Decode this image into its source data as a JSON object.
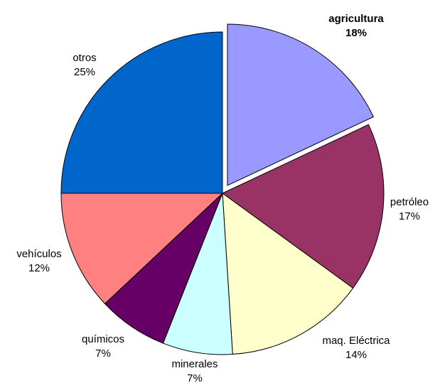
{
  "chart_data": {
    "type": "pie",
    "title": "",
    "exploded": "agricultura",
    "slices": [
      {
        "label": "agricultura",
        "value_label": "18%",
        "value": 18,
        "color": "#9999ff",
        "bold": true
      },
      {
        "label": "petróleo",
        "value_label": "17%",
        "value": 17,
        "color": "#993366",
        "bold": false
      },
      {
        "label": "maq. Eléctrica",
        "value_label": "14%",
        "value": 14,
        "color": "#ffffcc",
        "bold": false
      },
      {
        "label": "minerales",
        "value_label": "7%",
        "value": 7,
        "color": "#ccffff",
        "bold": false
      },
      {
        "label": "químicos",
        "value_label": "7%",
        "value": 7,
        "color": "#660066",
        "bold": false
      },
      {
        "label": "vehículos",
        "value_label": "12%",
        "value": 12,
        "color": "#ff8080",
        "bold": false
      },
      {
        "label": "otros",
        "value_label": "25%",
        "value": 25,
        "color": "#0066cc",
        "bold": false
      }
    ]
  }
}
